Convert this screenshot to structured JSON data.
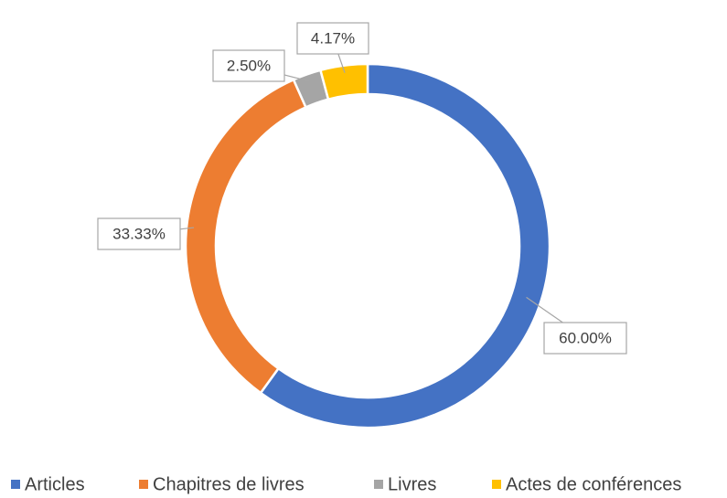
{
  "chart_data": {
    "type": "donut",
    "categories": [
      "Articles",
      "Chapitres de livres",
      "Livres",
      "Actes de conférences"
    ],
    "values": [
      60.0,
      33.33,
      2.5,
      4.17
    ],
    "value_labels": [
      "60.00%",
      "33.33%",
      "2.50%",
      "4.17%"
    ],
    "colors": [
      "#4472c4",
      "#ed7d31",
      "#a5a5a5",
      "#ffc000"
    ],
    "legend": "bottom"
  }
}
